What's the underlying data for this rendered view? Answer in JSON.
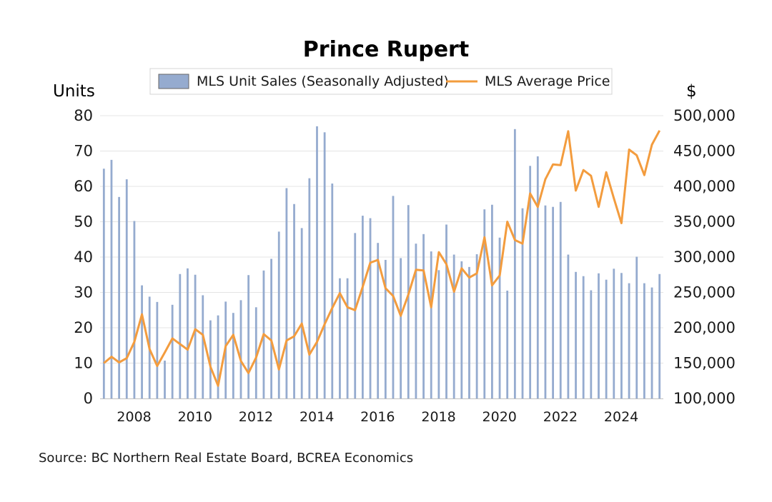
{
  "chart_data": {
    "type": "bar+line",
    "title": "Prince Rupert",
    "left_axis_label": "Units",
    "right_axis_label": "$",
    "y_left": {
      "min": 0,
      "max": 80,
      "ticks": [
        "0",
        "10",
        "20",
        "30",
        "40",
        "50",
        "60",
        "70",
        "80"
      ]
    },
    "y_right": {
      "min": 100000,
      "max": 500000,
      "ticks": [
        "100,000",
        "150,000",
        "200,000",
        "250,000",
        "300,000",
        "350,000",
        "400,000",
        "450,000",
        "500,000"
      ]
    },
    "x_ticks": [
      "2008",
      "2010",
      "2012",
      "2014",
      "2016",
      "2018",
      "2020",
      "2022",
      "2024"
    ],
    "legend_position": "top-center",
    "grid": true,
    "series": [
      {
        "name": "MLS Unit Sales (Seasonally Adjusted)",
        "type": "bar",
        "color": "#95abcf",
        "values": [
          65,
          67.5,
          57,
          62,
          50.2,
          32,
          28.8,
          27.3,
          10.7,
          26.5,
          35.2,
          36.8,
          35,
          29.2,
          22.1,
          23.5,
          27.4,
          24.2,
          27.8,
          34.9,
          25.8,
          36.2,
          39.5,
          47.2,
          59.5,
          55,
          48.2,
          62.3,
          77,
          75.3,
          60.8,
          34,
          34,
          46.8,
          51.7,
          51,
          44,
          39.2,
          57.3,
          39.7,
          54.7,
          43.8,
          46.5,
          41.6,
          36.3,
          49.2,
          40.7,
          38.8,
          37.2,
          40.8,
          53.5,
          54.8,
          45.5,
          30.5,
          76.2,
          53.8,
          65.8,
          68.5,
          54.6,
          54.2,
          55.6,
          40.7,
          35.8,
          34.6,
          30.6,
          35.4,
          33.6,
          36.7,
          35.5,
          32.6,
          40.1,
          32.6,
          31.4,
          35.2
        ]
      },
      {
        "name": "MLS Average Price",
        "type": "line",
        "color": "#f39c3e",
        "values": [
          150000,
          159000,
          151000,
          157000,
          180000,
          219000,
          170000,
          146000,
          165000,
          185000,
          177000,
          169000,
          198000,
          190000,
          145000,
          118000,
          174000,
          190000,
          153000,
          136000,
          158000,
          191000,
          182000,
          141000,
          182000,
          188000,
          206000,
          162000,
          180000,
          205000,
          228000,
          249000,
          229000,
          225000,
          258000,
          292000,
          296000,
          256000,
          245000,
          217000,
          247000,
          282000,
          281000,
          229000,
          307000,
          290000,
          251000,
          284000,
          271000,
          277000,
          328000,
          260000,
          274000,
          350000,
          324000,
          319000,
          390000,
          371000,
          410000,
          431000,
          430000,
          478000,
          394000,
          423000,
          415000,
          371000,
          420000,
          383000,
          348000,
          452000,
          444000,
          416000,
          459000,
          479000
        ]
      }
    ]
  },
  "source": "Source:  BC Northern Real Estate Board, BCREA Economics"
}
